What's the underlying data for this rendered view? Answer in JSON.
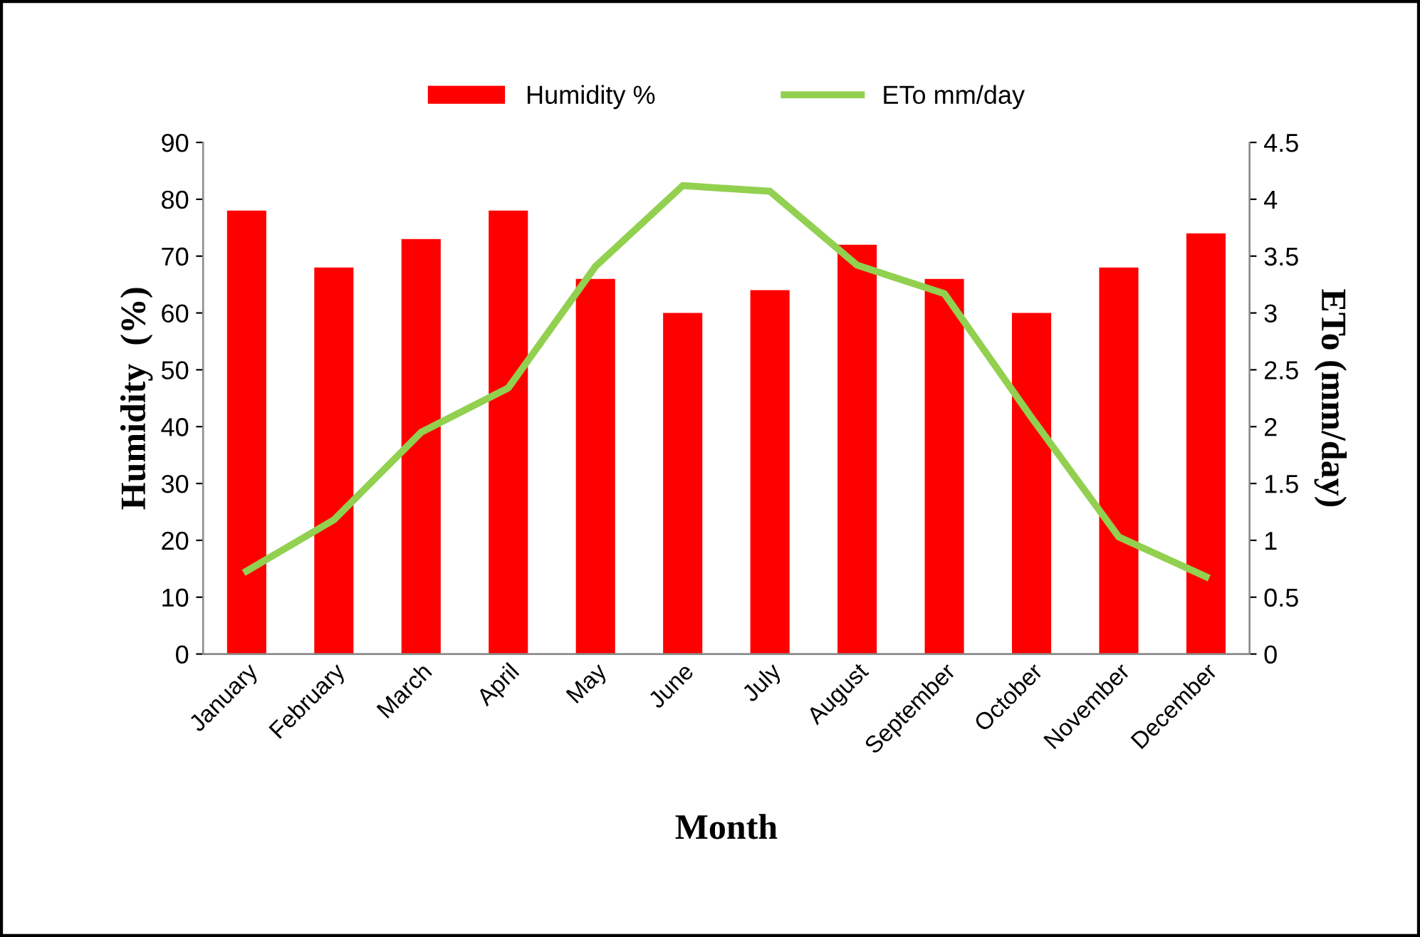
{
  "chart_data": {
    "type": "bar",
    "xlabel": "Month",
    "ylabel": "Humidity  (%)",
    "y2label": "ETo (mm/day)",
    "categories": [
      "January",
      "February",
      "March",
      "April",
      "May",
      "June",
      "July",
      "August",
      "September",
      "October",
      "November",
      "December"
    ],
    "series": [
      {
        "name": "Humidity %",
        "color": "#ff0000",
        "values": [
          78,
          68,
          73,
          78,
          66,
          60,
          64,
          72,
          66,
          60,
          68,
          74
        ]
      },
      {
        "name": "ETo mm/day",
        "type": "line",
        "axis": "y2",
        "color": "#92d050",
        "values": [
          0.73,
          1.18,
          1.95,
          2.34,
          3.41,
          4.12,
          4.07,
          3.42,
          3.17,
          2.08,
          1.03,
          0.68
        ]
      }
    ],
    "ylim": [
      0,
      90
    ],
    "yticks": [
      0,
      10,
      20,
      30,
      40,
      50,
      60,
      70,
      80,
      90
    ],
    "y2lim": [
      0,
      4.5
    ],
    "y2ticks": [
      0,
      0.5,
      1,
      1.5,
      2,
      2.5,
      3,
      3.5,
      4,
      4.5
    ],
    "grid": false,
    "legend": "top",
    "marker": "none",
    "line_style": "solid"
  }
}
